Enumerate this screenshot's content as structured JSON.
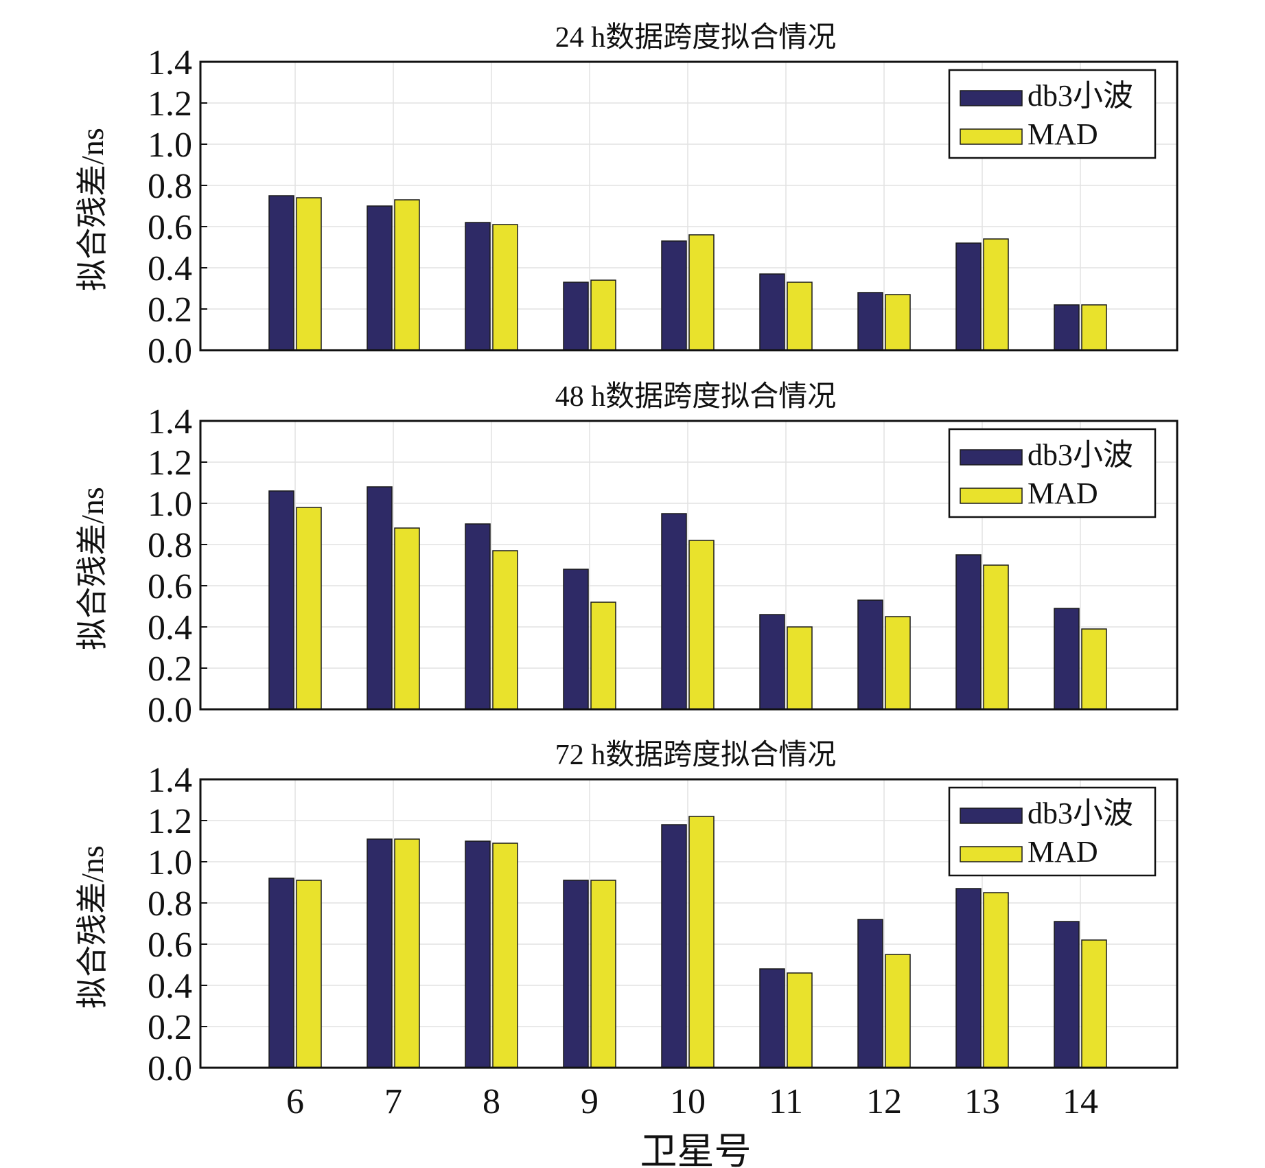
{
  "chart_data": [
    {
      "type": "bar",
      "title": "24 h数据跨度拟合情况",
      "ylabel": "拟合残差/ns",
      "xlabel": "",
      "ylim": [
        0,
        1.4
      ],
      "yticks": [
        "0.0",
        "0.2",
        "0.4",
        "0.6",
        "0.8",
        "1.0",
        "1.2",
        "1.4"
      ],
      "categories": [
        "6",
        "7",
        "8",
        "9",
        "10",
        "11",
        "12",
        "13",
        "14"
      ],
      "grid": true,
      "legend_position": "top-right",
      "series": [
        {
          "name": "db3小波",
          "color": "#2e2a66",
          "values": [
            0.75,
            0.7,
            0.62,
            0.33,
            0.53,
            0.37,
            0.28,
            0.52,
            0.22
          ]
        },
        {
          "name": "MAD",
          "color": "#e9e22c",
          "values": [
            0.74,
            0.73,
            0.61,
            0.34,
            0.56,
            0.33,
            0.27,
            0.54,
            0.22
          ]
        }
      ]
    },
    {
      "type": "bar",
      "title": "48 h数据跨度拟合情况",
      "ylabel": "拟合残差/ns",
      "xlabel": "",
      "ylim": [
        0,
        1.4
      ],
      "yticks": [
        "0.0",
        "0.2",
        "0.4",
        "0.6",
        "0.8",
        "1.0",
        "1.2",
        "1.4"
      ],
      "categories": [
        "6",
        "7",
        "8",
        "9",
        "10",
        "11",
        "12",
        "13",
        "14"
      ],
      "grid": true,
      "legend_position": "top-right",
      "series": [
        {
          "name": "db3小波",
          "color": "#2e2a66",
          "values": [
            1.06,
            1.08,
            0.9,
            0.68,
            0.95,
            0.46,
            0.53,
            0.75,
            0.49
          ]
        },
        {
          "name": "MAD",
          "color": "#e9e22c",
          "values": [
            0.98,
            0.88,
            0.77,
            0.52,
            0.82,
            0.4,
            0.45,
            0.7,
            0.39
          ]
        }
      ]
    },
    {
      "type": "bar",
      "title": "72 h数据跨度拟合情况",
      "ylabel": "拟合残差/ns",
      "xlabel": "卫星号",
      "ylim": [
        0,
        1.4
      ],
      "yticks": [
        "0.0",
        "0.2",
        "0.4",
        "0.6",
        "0.8",
        "1.0",
        "1.2",
        "1.4"
      ],
      "categories": [
        "6",
        "7",
        "8",
        "9",
        "10",
        "11",
        "12",
        "13",
        "14"
      ],
      "grid": true,
      "legend_position": "top-right",
      "series": [
        {
          "name": "db3小波",
          "color": "#2e2a66",
          "values": [
            0.92,
            1.11,
            1.1,
            0.91,
            1.18,
            0.48,
            0.72,
            0.87,
            0.71
          ]
        },
        {
          "name": "MAD",
          "color": "#e9e22c",
          "values": [
            0.91,
            1.11,
            1.09,
            0.91,
            1.22,
            0.46,
            0.55,
            0.85,
            0.62
          ]
        }
      ]
    }
  ]
}
